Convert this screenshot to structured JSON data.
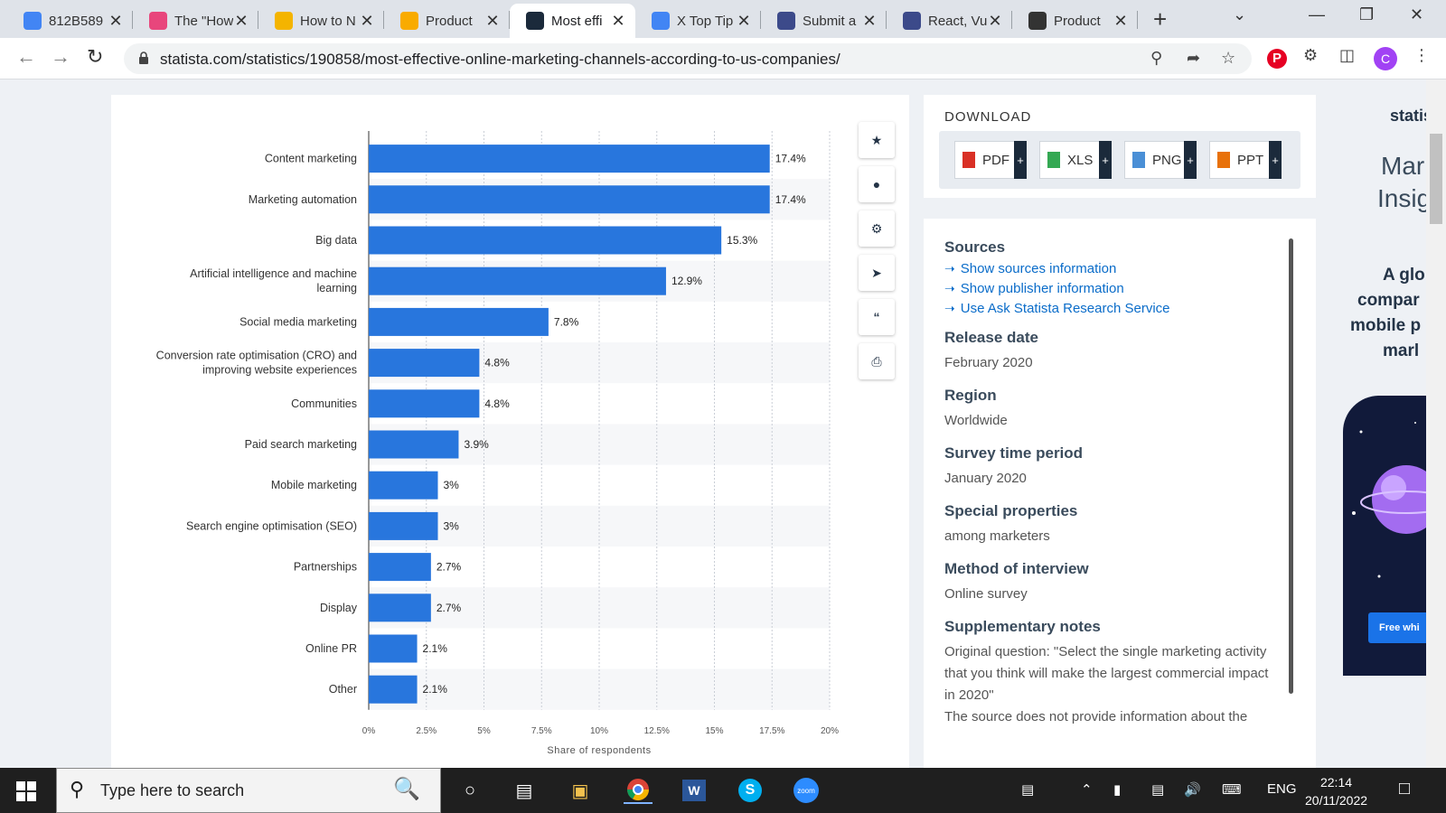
{
  "tabs": [
    {
      "title": "812B589",
      "icon": "docs-icon",
      "color": "#4285f4"
    },
    {
      "title": "The \"How",
      "icon": "u-icon",
      "color": "#e8467c"
    },
    {
      "title": "How to N",
      "icon": "cube-icon",
      "color": "#f4b400"
    },
    {
      "title": "Product",
      "icon": "product-icon",
      "color": "#f9ab00"
    },
    {
      "title": "Most effi",
      "icon": "statista-icon",
      "color": "#1b2a3b"
    },
    {
      "title": "X Top Tip",
      "icon": "docs-icon",
      "color": "#4285f4"
    },
    {
      "title": "Submit a",
      "icon": "flag-icon",
      "color": "#3c4a8a"
    },
    {
      "title": "React, Vu",
      "icon": "flag-icon",
      "color": "#3c4a8a"
    },
    {
      "title": "Product",
      "icon": "c-icon",
      "color": "#333333"
    }
  ],
  "url": "statista.com/statistics/190858/most-effective-online-marketing-channels-according-to-us-companies/",
  "chart_data": {
    "type": "bar",
    "orientation": "horizontal",
    "categories": [
      "Content marketing",
      "Marketing automation",
      "Big data",
      "Artificial intelligence and machine learning",
      "Social media marketing",
      "Conversion rate optimisation (CRO) and improving website experiences",
      "Communities",
      "Paid search marketing",
      "Mobile marketing",
      "Search engine optimisation (SEO)",
      "Partnerships",
      "Display",
      "Online PR",
      "Other"
    ],
    "category_lines": [
      [
        "Content marketing"
      ],
      [
        "Marketing automation"
      ],
      [
        "Big data"
      ],
      [
        "Artificial intelligence and machine",
        "learning"
      ],
      [
        "Social media marketing"
      ],
      [
        "Conversion rate optimisation (CRO) and",
        "improving website experiences"
      ],
      [
        "Communities"
      ],
      [
        "Paid search marketing"
      ],
      [
        "Mobile marketing"
      ],
      [
        "Search engine optimisation (SEO)"
      ],
      [
        "Partnerships"
      ],
      [
        "Display"
      ],
      [
        "Online PR"
      ],
      [
        "Other"
      ]
    ],
    "values": [
      17.4,
      17.4,
      15.3,
      12.9,
      7.8,
      4.8,
      4.8,
      3.9,
      3,
      3,
      2.7,
      2.7,
      2.1,
      2.1
    ],
    "value_labels": [
      "17.4%",
      "17.4%",
      "15.3%",
      "12.9%",
      "7.8%",
      "4.8%",
      "4.8%",
      "3.9%",
      "3%",
      "3%",
      "2.7%",
      "2.7%",
      "2.1%",
      "2.1%"
    ],
    "xlabel": "Share of respondents",
    "xlim": [
      0,
      20
    ],
    "x_ticks": [
      0,
      2.5,
      5,
      7.5,
      10,
      12.5,
      15,
      17.5,
      20
    ],
    "x_tick_labels": [
      "0%",
      "2.5%",
      "5%",
      "7.5%",
      "10%",
      "12.5%",
      "15%",
      "17.5%",
      "20%"
    ],
    "bar_color": "#2876dd",
    "grid": true
  },
  "download": {
    "title": "DOWNLOAD",
    "buttons": [
      {
        "label": "PDF",
        "plus": "+",
        "color": "#d93025"
      },
      {
        "label": "XLS",
        "plus": "+",
        "color": "#34a853"
      },
      {
        "label": "PNG",
        "plus": "+",
        "color": "#4a8fd6"
      },
      {
        "label": "PPT",
        "plus": "+",
        "color": "#e8710a"
      }
    ]
  },
  "meta": {
    "sources_title": "Sources",
    "links": [
      "Show sources information",
      "Show publisher information",
      "Use Ask Statista Research Service"
    ],
    "release_title": "Release date",
    "release_value": "February 2020",
    "region_title": "Region",
    "region_value": "Worldwide",
    "survey_title": "Survey time period",
    "survey_value": "January 2020",
    "special_title": "Special properties",
    "special_value": "among marketers",
    "method_title": "Method of interview",
    "method_value": "Online survey",
    "notes_title": "Supplementary notes",
    "notes_value": "Original question: \"Select the single marketing activity that you think will make the largest commercial impact in 2020\"",
    "notes_value2": "The source does not provide information about the"
  },
  "ad": {
    "brand": "statis",
    "line1": "Mar",
    "line2": "Insig",
    "l3": "A glo",
    "l4": "compar",
    "l5": "mobile p",
    "l6": "marl",
    "button": "Free whi"
  },
  "taskbar": {
    "search_placeholder": "Type here to search",
    "lang": "ENG",
    "time": "22:14",
    "date": "20/11/2022"
  },
  "profile_initial": "C"
}
